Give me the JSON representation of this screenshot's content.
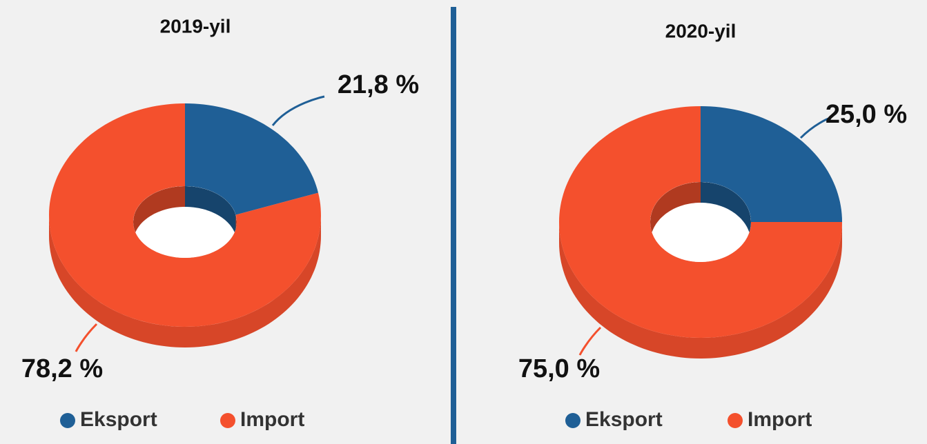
{
  "chart_data": [
    {
      "type": "pie",
      "title": "2019-yil",
      "categories": [
        "Eksport",
        "Import"
      ],
      "values": [
        21.8,
        78.2
      ],
      "value_labels": [
        "21,8 %",
        "78,2 %"
      ],
      "colors": [
        "#1f5f96",
        "#f4502d"
      ],
      "legend": "bottom"
    },
    {
      "type": "pie",
      "title": "2020-yil",
      "categories": [
        "Eksport",
        "Import"
      ],
      "values": [
        25.0,
        75.0
      ],
      "value_labels": [
        "25,0 %",
        "75,0 %"
      ],
      "colors": [
        "#1f5f96",
        "#f4502d"
      ],
      "legend": "bottom"
    }
  ]
}
